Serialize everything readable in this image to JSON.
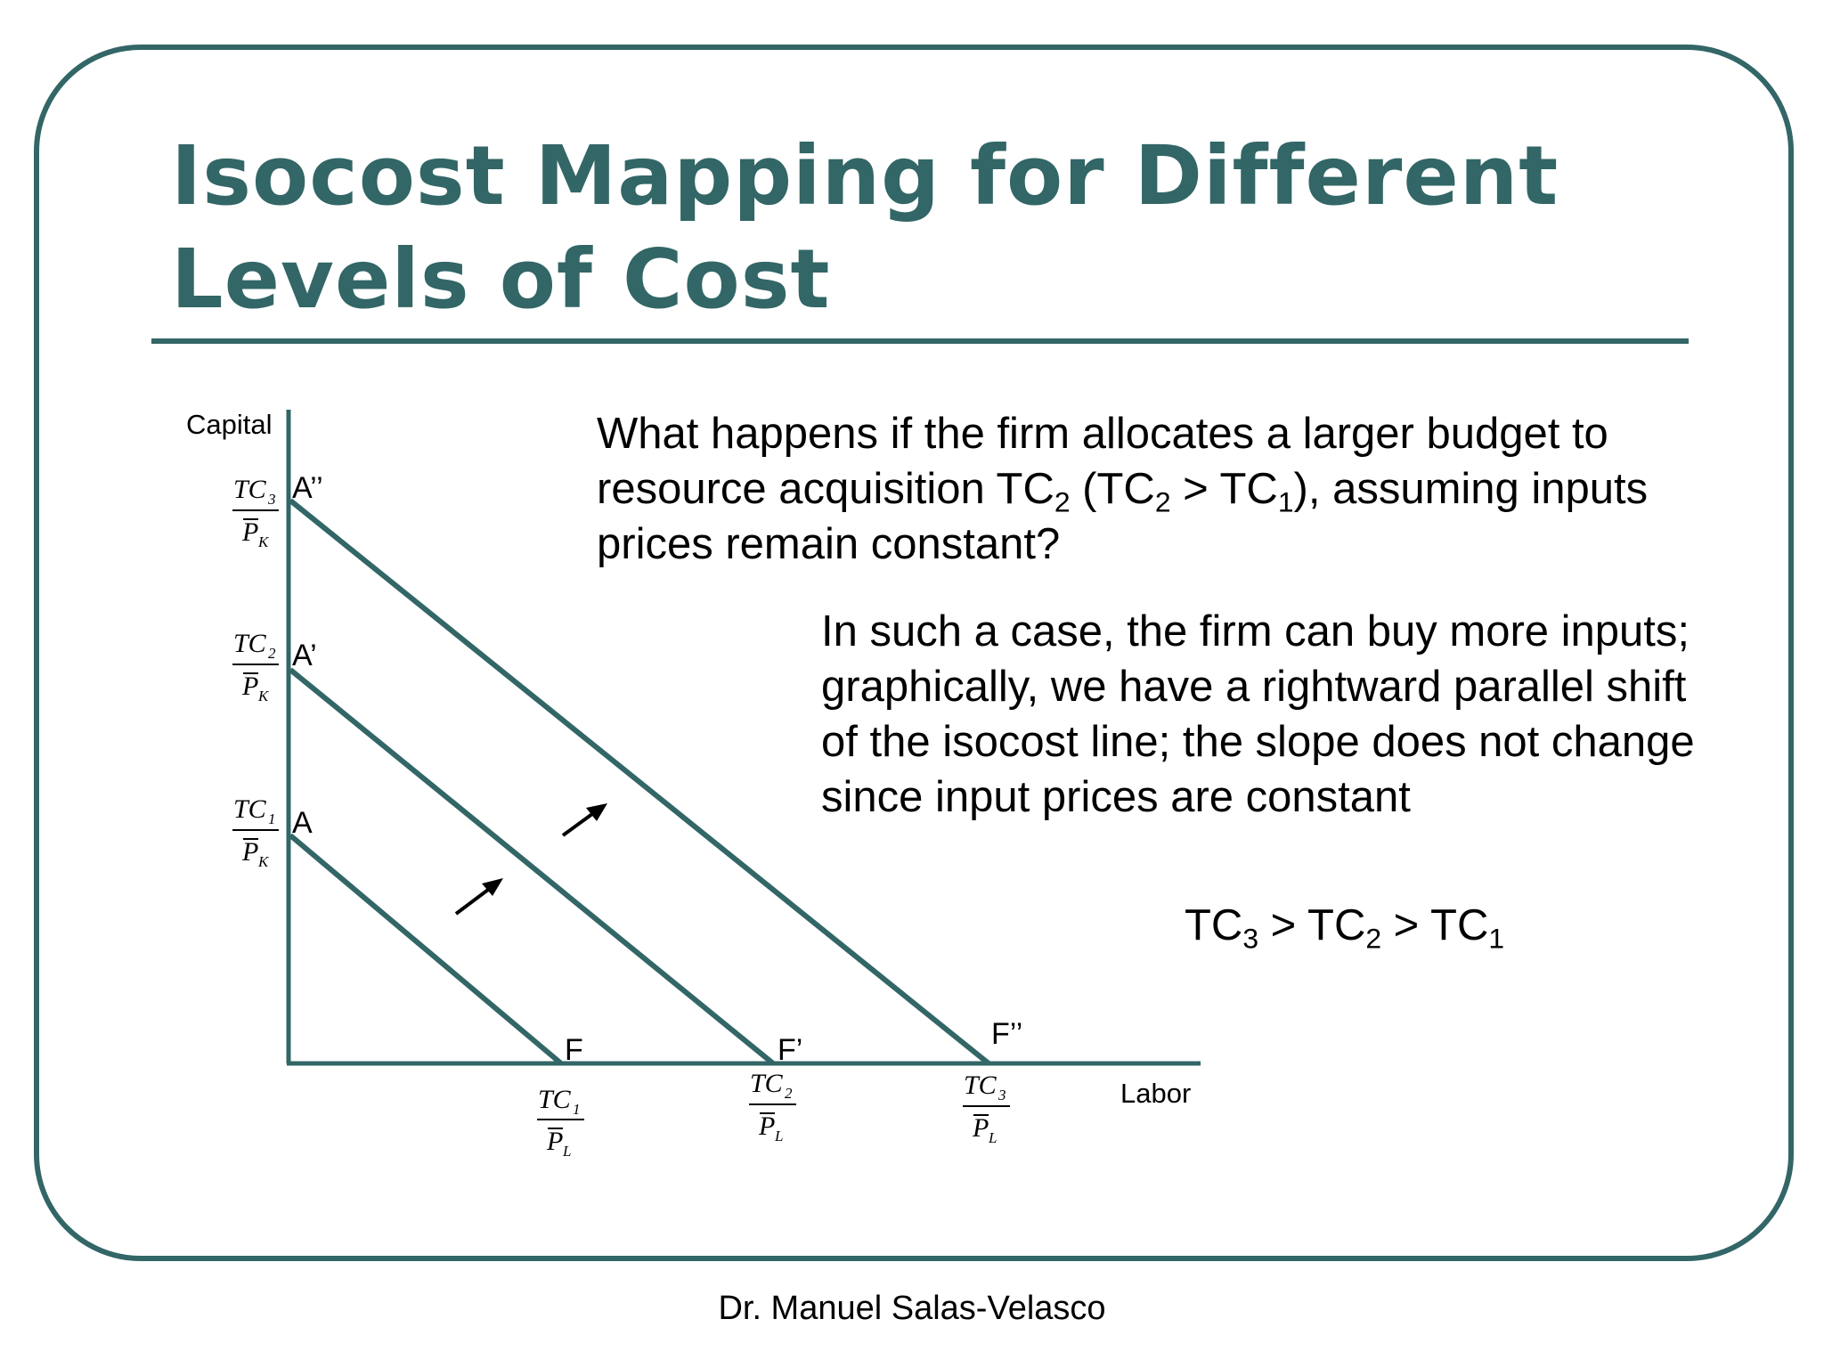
{
  "slide": {
    "title_line1": "Isocost Mapping for Different",
    "title_line2": "Levels of Cost",
    "question": {
      "part1": "What happens if the firm allocates a larger budget to resource acquisition TC",
      "sub1": "2",
      "part2": " (TC",
      "sub2": "2",
      "part3": " > TC",
      "sub3": "1",
      "part4": "), assuming inputs prices remain constant?"
    },
    "explanation": "In such a case, the firm can buy more inputs; graphically, we have a rightward parallel shift of the isocost line; the slope does not change since input prices are constant",
    "inequality": {
      "tc": "TC",
      "s3": "3",
      "gt": " > ",
      "s2": "2",
      "s1": "1"
    },
    "footer": "Dr. Manuel Salas-Velasco"
  },
  "diagram": {
    "y_axis_label": "Capital",
    "x_axis_label": "Labor",
    "line_color": "#336666",
    "points": {
      "A": "A",
      "A1": "A’",
      "A2": "A’’",
      "F": "F",
      "F1": "F’",
      "F2": "F’’"
    },
    "fractions": {
      "tc": "TC",
      "p": "P",
      "k": "K",
      "l": "L",
      "s1": "1",
      "s2": "2",
      "s3": "3"
    },
    "arrows": [
      "shift-arrow",
      "shift-arrow"
    ]
  }
}
